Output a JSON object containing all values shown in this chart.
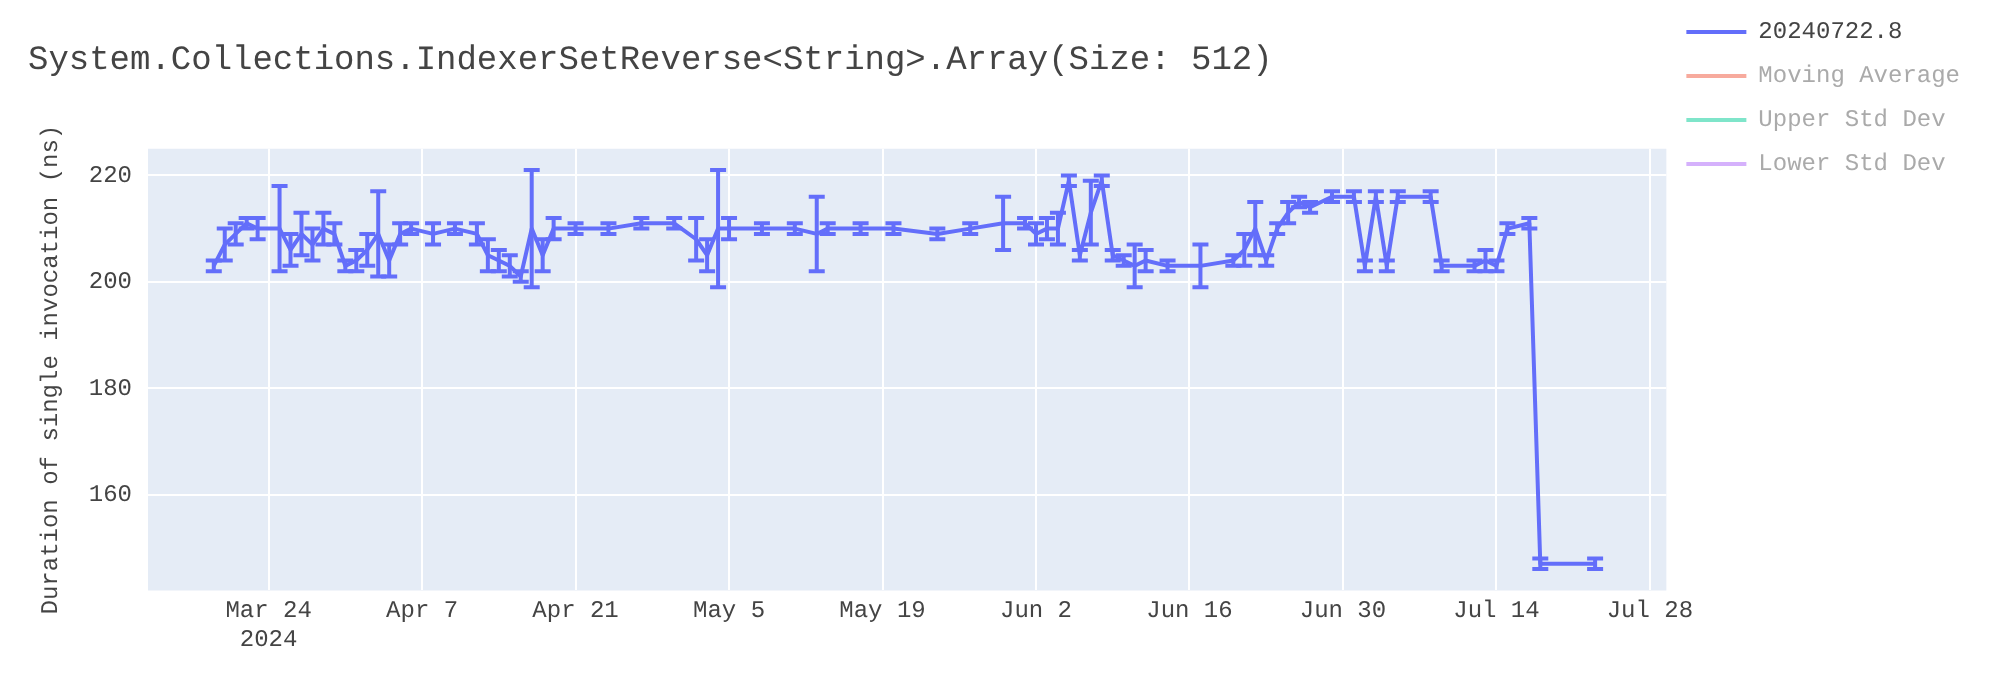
{
  "chart_data": {
    "type": "line",
    "title": "System.Collections.IndexerSetReverse<String>.Array(Size: 512)",
    "ylabel": "Duration of single invocation (ns)",
    "xlim": [
      "2024-03-13",
      "2024-07-29T12:00"
    ],
    "xticks": [
      {
        "value": "2024-03-24",
        "label": "Mar 24\n2024"
      },
      {
        "value": "2024-04-07",
        "label": "Apr 7"
      },
      {
        "value": "2024-04-21",
        "label": "Apr 21"
      },
      {
        "value": "2024-05-05",
        "label": "May 5"
      },
      {
        "value": "2024-05-19",
        "label": "May 19"
      },
      {
        "value": "2024-06-02",
        "label": "Jun 2"
      },
      {
        "value": "2024-06-16",
        "label": "Jun 16"
      },
      {
        "value": "2024-06-30",
        "label": "Jun 30"
      },
      {
        "value": "2024-07-14",
        "label": "Jul 14"
      },
      {
        "value": "2024-07-28",
        "label": "Jul 28"
      }
    ],
    "ylim": [
      142,
      225
    ],
    "yticks": [
      160,
      180,
      200,
      220
    ],
    "grid": true,
    "legend": "top right",
    "line_style": "solid",
    "series": [
      {
        "name": "20240722.8",
        "color": "#636efa",
        "x": [
          "2024-03-19",
          "2024-03-20",
          "2024-03-21",
          "2024-03-22",
          "2024-03-23",
          "2024-03-25",
          "2024-03-26",
          "2024-03-27",
          "2024-03-28",
          "2024-03-29",
          "2024-03-30",
          "2024-03-31",
          "2024-04-01",
          "2024-04-02",
          "2024-04-03",
          "2024-04-04",
          "2024-04-05",
          "2024-04-06",
          "2024-04-08",
          "2024-04-10",
          "2024-04-12",
          "2024-04-13",
          "2024-04-14",
          "2024-04-15",
          "2024-04-16",
          "2024-04-17",
          "2024-04-18",
          "2024-04-19",
          "2024-04-21",
          "2024-04-24",
          "2024-04-27",
          "2024-04-30",
          "2024-05-02",
          "2024-05-03",
          "2024-05-04",
          "2024-05-05",
          "2024-05-08",
          "2024-05-11",
          "2024-05-13",
          "2024-05-14",
          "2024-05-17",
          "2024-05-20",
          "2024-05-24",
          "2024-05-27",
          "2024-05-30",
          "2024-06-01",
          "2024-06-02",
          "2024-06-03",
          "2024-06-04",
          "2024-06-05",
          "2024-06-06",
          "2024-06-07",
          "2024-06-08",
          "2024-06-09",
          "2024-06-10",
          "2024-06-11",
          "2024-06-12",
          "2024-06-14",
          "2024-06-17",
          "2024-06-20",
          "2024-06-21",
          "2024-06-22",
          "2024-06-23",
          "2024-06-24",
          "2024-06-25",
          "2024-06-26",
          "2024-06-27",
          "2024-06-29",
          "2024-07-01",
          "2024-07-02",
          "2024-07-03",
          "2024-07-04",
          "2024-07-05",
          "2024-07-08",
          "2024-07-09",
          "2024-07-12",
          "2024-07-13",
          "2024-07-14",
          "2024-07-15",
          "2024-07-17",
          "2024-07-18",
          "2024-07-23"
        ],
        "values": [
          203,
          207,
          209,
          211,
          210,
          210,
          206,
          209,
          207,
          210,
          209,
          203,
          204,
          206,
          209,
          204,
          209,
          210,
          209,
          210,
          209,
          205,
          204,
          203,
          201,
          210,
          205,
          210,
          210,
          210,
          211,
          211,
          208,
          205,
          210,
          210,
          210,
          210,
          209,
          210,
          210,
          210,
          209,
          210,
          211,
          211,
          209,
          210,
          210,
          219,
          205,
          213,
          219,
          205,
          204,
          203,
          204,
          203,
          203,
          204,
          206,
          210,
          204,
          210,
          213,
          215,
          214,
          216,
          216,
          203,
          216,
          203,
          216,
          216,
          203,
          203,
          204,
          203,
          210,
          211,
          147,
          147
        ],
        "errors": [
          1,
          3,
          2,
          1,
          2,
          8,
          3,
          4,
          3,
          3,
          2,
          1,
          2,
          3,
          8,
          3,
          2,
          1,
          2,
          1,
          2,
          3,
          2,
          2,
          1,
          11,
          3,
          2,
          1,
          1,
          1,
          1,
          4,
          3,
          11,
          2,
          1,
          1,
          7,
          1,
          1,
          1,
          1,
          1,
          5,
          1,
          2,
          2,
          3,
          1,
          1,
          6,
          1,
          1,
          1,
          4,
          2,
          1,
          4,
          1,
          3,
          5,
          1,
          1,
          2,
          1,
          1,
          1,
          1,
          1,
          1,
          1,
          1,
          1,
          1,
          1,
          2,
          1,
          1,
          1,
          1,
          1
        ]
      },
      {
        "name": "Moving Average",
        "color": "#ef553b",
        "values": [
          null
        ]
      },
      {
        "name": "Upper Std Dev",
        "color": "#00cc96",
        "values": [
          null
        ]
      },
      {
        "name": "Lower Std Dev",
        "color": "#ab63fa",
        "values": [
          null
        ]
      }
    ]
  }
}
